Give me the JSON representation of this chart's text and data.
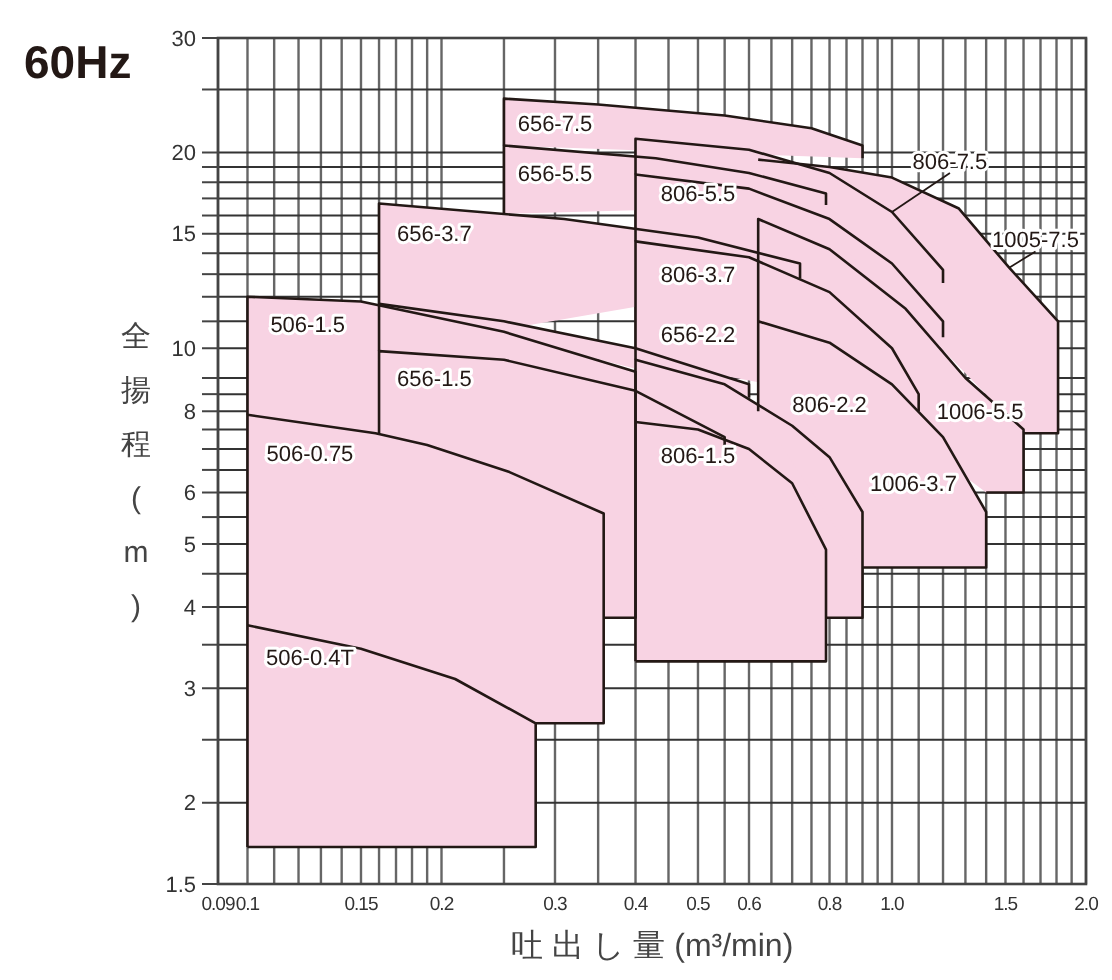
{
  "chart_data": {
    "type": "line",
    "title": "60Hz",
    "xlabel": "吐 出 し 量 (m³/min)",
    "ylabel": "全揚程(m)",
    "log": "xy",
    "grid": true,
    "xlim": [
      0.09,
      2.0
    ],
    "ylim": [
      1.5,
      30
    ],
    "xticks": [
      0.09,
      0.1,
      {
        "value": 0.11,
        "label": null
      },
      {
        "value": 0.12,
        "label": null
      },
      {
        "value": 0.13,
        "label": null
      },
      {
        "value": 0.14,
        "label": null
      },
      0.15,
      {
        "value": 0.16,
        "label": null
      },
      {
        "value": 0.17,
        "label": null
      },
      {
        "value": 0.18,
        "label": null
      },
      {
        "value": 0.19,
        "label": null
      },
      0.2,
      {
        "value": 0.25,
        "label": null
      },
      0.3,
      {
        "value": 0.35,
        "label": null
      },
      0.4,
      {
        "value": 0.45,
        "label": null
      },
      0.5,
      {
        "value": 0.55,
        "label": null
      },
      0.6,
      {
        "value": 0.65,
        "label": null
      },
      {
        "value": 0.7,
        "label": null
      },
      {
        "value": 0.75,
        "label": null
      },
      0.8,
      {
        "value": 0.85,
        "label": null
      },
      {
        "value": 0.9,
        "label": null
      },
      {
        "value": 0.95,
        "label": null
      },
      {
        "value": 1.0,
        "label": "1.0"
      },
      {
        "value": 1.1,
        "label": null
      },
      {
        "value": 1.2,
        "label": null
      },
      {
        "value": 1.3,
        "label": null
      },
      {
        "value": 1.4,
        "label": null
      },
      1.5,
      {
        "value": 1.6,
        "label": null
      },
      {
        "value": 1.7,
        "label": null
      },
      {
        "value": 1.8,
        "label": null
      },
      {
        "value": 1.9,
        "label": null
      },
      {
        "value": 2.0,
        "label": "2.0"
      }
    ],
    "yticks": [
      1.5,
      2,
      {
        "value": 2.5,
        "label": null
      },
      3,
      {
        "value": 3.5,
        "label": null
      },
      4,
      {
        "value": 4.5,
        "label": null
      },
      5,
      {
        "value": 5.5,
        "label": null
      },
      6,
      {
        "value": 6.5,
        "label": null
      },
      {
        "value": 7,
        "label": null
      },
      {
        "value": 7.5,
        "label": null
      },
      8,
      {
        "value": 8.5,
        "label": null
      },
      {
        "value": 9,
        "label": null
      },
      10,
      {
        "value": 11,
        "label": null
      },
      {
        "value": 12,
        "label": null
      },
      {
        "value": 13,
        "label": null
      },
      {
        "value": 14,
        "label": null
      },
      15,
      {
        "value": 16,
        "label": null
      },
      {
        "value": 17,
        "label": null
      },
      {
        "value": 18,
        "label": null
      },
      {
        "value": 19,
        "label": null
      },
      20,
      {
        "value": 25,
        "label": null
      },
      30
    ],
    "series": [
      {
        "name": "656-7.5",
        "color": "#231815",
        "x": [
          0.25,
          0.25,
          0.35,
          0.55,
          0.75,
          0.9,
          0.9
        ],
        "values": [
          20.5,
          24.2,
          23.7,
          22.8,
          21.8,
          20.5,
          19.6
        ]
      },
      {
        "name": "656-5.5",
        "color": "#231815",
        "x": [
          0.25,
          0.25,
          0.43,
          0.6,
          0.79,
          0.79
        ],
        "values": [
          16.1,
          20.5,
          19.6,
          18.6,
          17.3,
          16.6
        ]
      },
      {
        "name": "656-3.7",
        "color": "#231815",
        "x": [
          0.16,
          0.16,
          0.31,
          0.5,
          0.72,
          0.72
        ],
        "values": [
          9.9,
          16.7,
          15.8,
          14.8,
          13.5,
          12.8
        ]
      },
      {
        "name": "656-2.2",
        "color": "#231815",
        "x": [
          0.16,
          0.25,
          0.4,
          0.6,
          0.6
        ],
        "values": [
          11.7,
          11.0,
          10.0,
          8.8,
          8.4
        ]
      },
      {
        "name": "656-1.5",
        "color": "#231815",
        "x": [
          0.16,
          0.16,
          0.25,
          0.4,
          0.55,
          0.55
        ],
        "values": [
          7.4,
          9.9,
          9.6,
          8.6,
          7.3,
          6.9
        ]
      },
      {
        "name": "506-1.5",
        "color": "#231815",
        "x": [
          0.1,
          0.1,
          0.15,
          0.25,
          0.4,
          0.4,
          0.357
        ],
        "values": [
          7.9,
          12,
          11.8,
          10.6,
          9.2,
          3.85,
          3.85
        ]
      },
      {
        "name": "506-0.75",
        "color": "#231815",
        "x": [
          0.1,
          0.1,
          0.158,
          0.19,
          0.255,
          0.357,
          0.357,
          0.28
        ],
        "values": [
          1.71,
          7.9,
          7.4,
          7.1,
          6.45,
          5.57,
          2.65,
          2.65
        ]
      },
      {
        "name": "506-0.4T",
        "color": "#231815",
        "x": [
          0.1,
          0.15,
          0.21,
          0.28,
          0.28,
          0.1
        ],
        "values": [
          3.75,
          3.45,
          3.1,
          2.65,
          1.71,
          1.71
        ]
      },
      {
        "name": "806-7.5",
        "color": "#231815",
        "x": [
          0.4,
          0.4,
          0.6,
          0.8,
          1.0,
          1.2,
          1.2
        ],
        "values": [
          18.5,
          21,
          20.2,
          18.6,
          16.2,
          13.2,
          12.6
        ]
      },
      {
        "name": "806-5.5",
        "color": "#231815",
        "x": [
          0.4,
          0.4,
          0.6,
          0.8,
          1.0,
          1.2,
          1.2
        ],
        "values": [
          14.6,
          18.5,
          17.6,
          15.8,
          13.5,
          11.0,
          10.4
        ]
      },
      {
        "name": "806-3.7",
        "color": "#231815",
        "x": [
          0.4,
          0.4,
          0.6,
          0.8,
          1.0,
          1.1,
          1.1
        ],
        "values": [
          9.6,
          14.6,
          13.8,
          12.2,
          10.0,
          8.5,
          8.0
        ]
      },
      {
        "name": "806-2.2",
        "color": "#231815",
        "x": [
          0.4,
          0.4,
          0.55,
          0.7,
          0.8,
          0.9,
          0.9,
          0.79
        ],
        "values": [
          3.3,
          9.6,
          8.8,
          7.6,
          6.8,
          5.6,
          3.85,
          3.85
        ]
      },
      {
        "name": "806-1.5",
        "color": "#231815",
        "x": [
          0.4,
          0.5,
          0.6,
          0.7,
          0.79,
          0.79,
          0.4
        ],
        "values": [
          7.7,
          7.5,
          7.0,
          6.2,
          4.9,
          3.3,
          3.3
        ]
      },
      {
        "name": "1005-7.5",
        "color": "#231815",
        "x": [
          0.62,
          0.8,
          1.0,
          1.27,
          1.52,
          1.81,
          1.81,
          1.6
        ],
        "values": [
          19.5,
          19.0,
          18.3,
          16.4,
          13.3,
          11.0,
          7.4,
          7.4
        ]
      },
      {
        "name": "1006-5.5",
        "color": "#231815",
        "x": [
          0.62,
          0.62,
          0.8,
          1.05,
          1.3,
          1.6,
          1.6,
          1.4
        ],
        "values": [
          11.0,
          15.8,
          14.2,
          11.5,
          9.0,
          7.5,
          6.0,
          6.0
        ]
      },
      {
        "name": "1006-3.7",
        "color": "#231815",
        "x": [
          0.62,
          0.62,
          0.8,
          1.0,
          1.2,
          1.4,
          1.4,
          0.9
        ],
        "values": [
          8.0,
          11.0,
          10.2,
          8.8,
          7.3,
          5.6,
          4.6,
          4.6
        ]
      }
    ]
  }
}
